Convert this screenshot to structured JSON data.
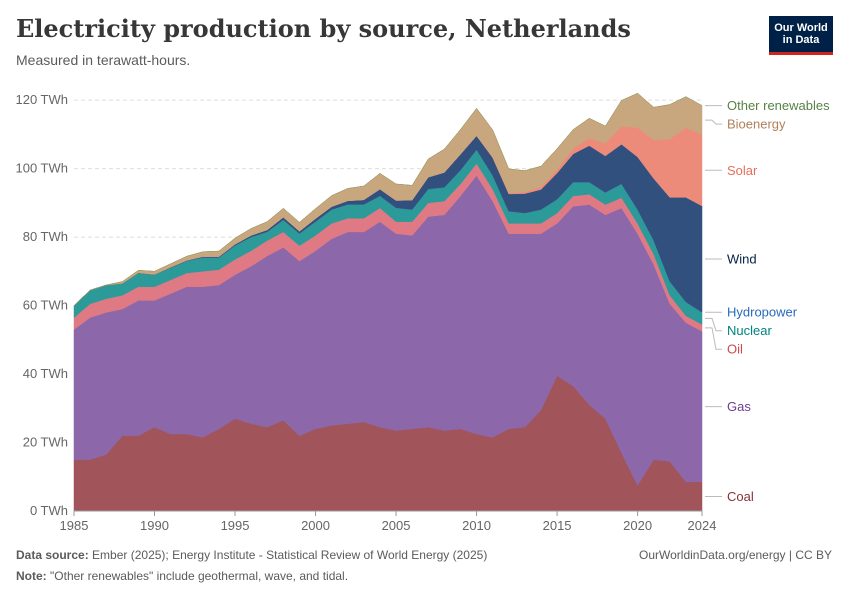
{
  "header": {
    "title": "Electricity production by source, Netherlands",
    "subtitle": "Measured in terawatt-hours.",
    "logo_line1": "Our World",
    "logo_line2": "in Data"
  },
  "footer": {
    "source_label": "Data source:",
    "source_text": "Ember (2025); Energy Institute - Statistical Review of World Energy (2025)",
    "note_label": "Note:",
    "note_text": "\"Other renewables\" include geothermal, wave, and tidal.",
    "credit": "OurWorldinData.org/energy | CC BY"
  },
  "chart_data": {
    "type": "area",
    "stacked": true,
    "title": "Electricity production by source, Netherlands",
    "ylabel": "TWh",
    "ylim": [
      0,
      125
    ],
    "yticks": [
      0,
      20,
      40,
      60,
      80,
      100,
      120
    ],
    "ytick_labels": [
      "0 TWh",
      "20 TWh",
      "40 TWh",
      "60 TWh",
      "80 TWh",
      "100 TWh",
      "120 TWh"
    ],
    "xlim": [
      1985,
      2024
    ],
    "xticks": [
      1985,
      1990,
      1995,
      2000,
      2005,
      2010,
      2015,
      2020,
      2024
    ],
    "xtick_labels": [
      "1985",
      "1990",
      "1995",
      "2000",
      "2005",
      "2010",
      "2015",
      "2020",
      "2024"
    ],
    "x": [
      1985,
      1986,
      1987,
      1988,
      1989,
      1990,
      1991,
      1992,
      1993,
      1994,
      1995,
      1996,
      1997,
      1998,
      1999,
      2000,
      2001,
      2002,
      2003,
      2004,
      2005,
      2006,
      2007,
      2008,
      2009,
      2010,
      2011,
      2012,
      2013,
      2014,
      2015,
      2016,
      2017,
      2018,
      2019,
      2020,
      2021,
      2022,
      2023,
      2024
    ],
    "series": [
      {
        "name": "Coal",
        "color": "#a2545b",
        "label_color": "#883039",
        "values": [
          15,
          15,
          16.5,
          22,
          22,
          24.5,
          22.5,
          22.5,
          21.5,
          24,
          27,
          25.5,
          24.5,
          26.5,
          22,
          24,
          25,
          25.5,
          26,
          24.5,
          23.5,
          24,
          24.5,
          23.5,
          24,
          22.5,
          21.5,
          24,
          24.5,
          29.5,
          39.5,
          36.5,
          31,
          27,
          17,
          7.5,
          15,
          14.5,
          8.5,
          8.5
        ]
      },
      {
        "name": "Gas",
        "color": "#8c67aa",
        "label_color": "#6d3e91",
        "values": [
          38,
          41.5,
          41.5,
          37,
          39.5,
          37,
          41,
          43,
          44,
          42,
          42,
          46,
          50,
          50.5,
          51,
          52,
          54.5,
          56,
          55.5,
          60,
          57.5,
          56.5,
          61.5,
          63,
          68,
          75.5,
          69,
          57,
          56.5,
          51.5,
          44.5,
          52.5,
          58.5,
          59.5,
          71.5,
          73.5,
          57,
          46,
          46.5,
          44
        ]
      },
      {
        "name": "Oil",
        "color": "#df7a84",
        "label_color": "#cf4a4a",
        "values": [
          3.5,
          4,
          4,
          4,
          4,
          4,
          4,
          4,
          4.5,
          4.5,
          4.5,
          4.5,
          4.5,
          4.5,
          4.5,
          4.5,
          4.5,
          4,
          4,
          4,
          3.5,
          4,
          4,
          4,
          3.5,
          3.5,
          3.5,
          3,
          3,
          3,
          3,
          3,
          3,
          3,
          3,
          3,
          3,
          2.5,
          2,
          2
        ]
      },
      {
        "name": "Nuclear",
        "color": "#2c9a99",
        "label_color": "#00847e",
        "values": [
          3.5,
          4,
          4,
          3.5,
          4,
          3.5,
          3.5,
          3.5,
          4,
          3.5,
          4,
          4,
          2.5,
          3.5,
          3.5,
          4,
          4,
          4,
          4,
          3.5,
          4,
          3.5,
          4,
          4,
          4,
          4,
          4,
          3.5,
          3,
          4,
          4,
          4,
          3.5,
          3.5,
          4,
          4,
          4,
          4,
          4,
          3.5
        ]
      },
      {
        "name": "Hydropower",
        "color": "#3f73a7",
        "label_color": "#286bbb",
        "values": [
          0,
          0,
          0,
          0,
          0.1,
          0.1,
          0.1,
          0.1,
          0.1,
          0.1,
          0.1,
          0.1,
          0.1,
          0.1,
          0.1,
          0.1,
          0.1,
          0.1,
          0.1,
          0.1,
          0.1,
          0.1,
          0.1,
          0.1,
          0.1,
          0.1,
          0.1,
          0.1,
          0.1,
          0.1,
          0.1,
          0.1,
          0.1,
          0.1,
          0.1,
          0.1,
          0.1,
          0.1,
          0.1,
          0.1
        ]
      },
      {
        "name": "Wind",
        "color": "#32507e",
        "label_color": "#002147",
        "values": [
          0,
          0,
          0,
          0,
          0,
          0,
          0.1,
          0.1,
          0.2,
          0.2,
          0.3,
          0.4,
          0.5,
          0.7,
          0.6,
          0.8,
          0.8,
          1,
          1.3,
          1.9,
          2.1,
          2.7,
          3.4,
          4.3,
          4.6,
          4,
          5.1,
          5,
          5.6,
          5.8,
          7.6,
          8.2,
          10.6,
          10.6,
          11.5,
          15.3,
          18,
          24.5,
          30.5,
          31
        ]
      },
      {
        "name": "Solar",
        "color": "#ec8b7a",
        "label_color": "#e56e5a",
        "values": [
          0,
          0,
          0,
          0,
          0,
          0,
          0,
          0,
          0,
          0,
          0,
          0,
          0,
          0,
          0,
          0,
          0,
          0,
          0,
          0,
          0,
          0,
          0,
          0,
          0,
          0,
          0.1,
          0.3,
          0.5,
          0.8,
          1.1,
          1.6,
          2.2,
          3.7,
          5.3,
          8.6,
          11.3,
          17.1,
          20.4,
          20.8
        ]
      },
      {
        "name": "Bioenergy",
        "color": "#c9a77e",
        "label_color": "#b1805a",
        "values": [
          0,
          0,
          0,
          0.5,
          0.7,
          0.9,
          1,
          1.2,
          1.4,
          1.6,
          1.8,
          2,
          2.4,
          2.6,
          2.6,
          2.9,
          3.2,
          3.6,
          4,
          4.6,
          4.8,
          4.3,
          5.3,
          6.8,
          7.2,
          8,
          8,
          7,
          6.2,
          6,
          6,
          5.5,
          5.8,
          5,
          7.5,
          10,
          9.5,
          10,
          9,
          8.5
        ]
      },
      {
        "name": "Other renewables",
        "color": "#9a9a66",
        "label_color": "#578145",
        "values": [
          0,
          0,
          0,
          0,
          0,
          0,
          0,
          0,
          0,
          0,
          0,
          0,
          0,
          0,
          0,
          0,
          0,
          0,
          0,
          0,
          0,
          0,
          0,
          0,
          0,
          0,
          0,
          0,
          0,
          0,
          0,
          0,
          0,
          0,
          0,
          0,
          0,
          0,
          0,
          0
        ]
      }
    ],
    "legend_placement": "right, labels at series end"
  }
}
